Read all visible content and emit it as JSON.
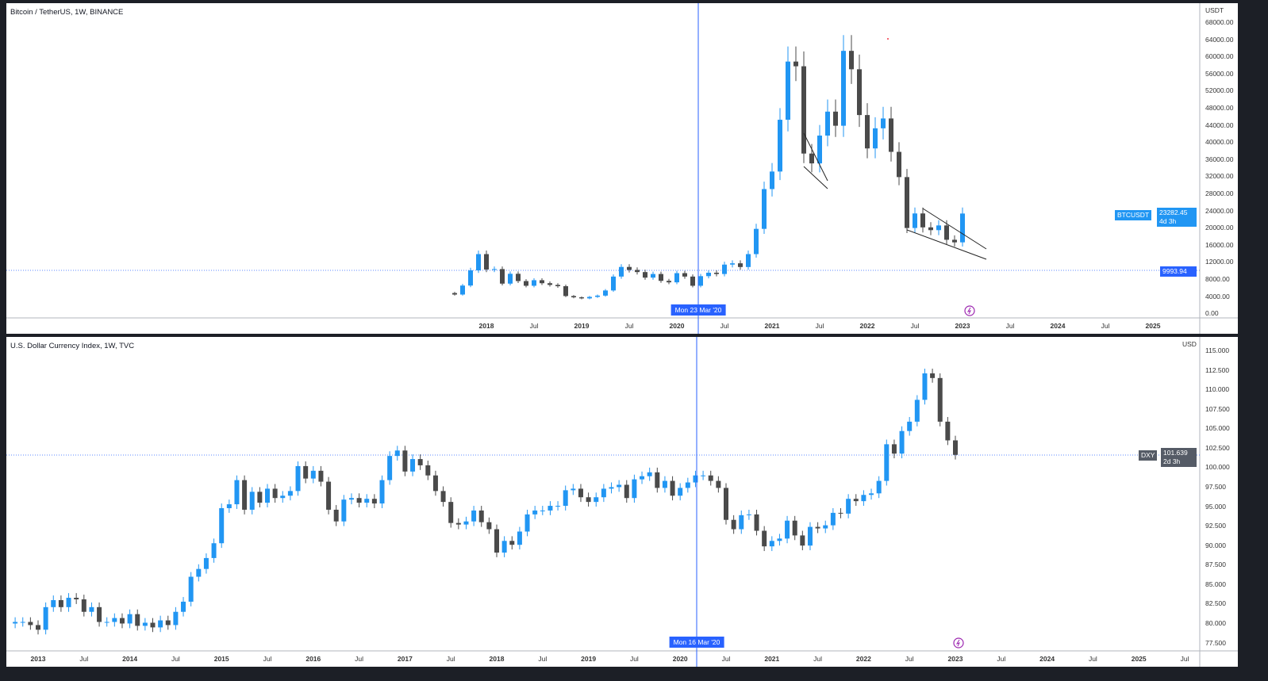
{
  "chart_data": [
    {
      "type": "candlestick",
      "title": "Bitcoin / TetherUS, 1W, BINANCE",
      "currency": "USDT",
      "symbol": "BTCUSDT",
      "last_price": "23282.45",
      "countdown": "4d 3h",
      "crosshair_price": "9993.94",
      "crosshair_date": "Mon 23 Mar '20",
      "ylim": [
        0,
        68000
      ],
      "y_ticks": [
        "68000.00",
        "64000.00",
        "60000.00",
        "56000.00",
        "52000.00",
        "48000.00",
        "44000.00",
        "40000.00",
        "36000.00",
        "32000.00",
        "28000.00",
        "24000.00",
        "20000.00",
        "16000.00",
        "12000.00",
        "8000.00",
        "4000.00",
        "0.00"
      ],
      "x_ticks": [
        [
          "2018",
          "2018-01"
        ],
        [
          "Jul",
          "2018-07"
        ],
        [
          "2019",
          "2019-01"
        ],
        [
          "Jul",
          "2019-07"
        ],
        [
          "2020",
          "2020-01"
        ],
        [
          "Jul",
          "2020-07"
        ],
        [
          "2021",
          "2021-01"
        ],
        [
          "Jul",
          "2021-07"
        ],
        [
          "2022",
          "2022-01"
        ],
        [
          "Jul",
          "2022-07"
        ],
        [
          "2023",
          "2023-01"
        ],
        [
          "Jul",
          "2023-07"
        ],
        [
          "2024",
          "2024-01"
        ],
        [
          "Jul",
          "2024-07"
        ],
        [
          "2025",
          "2025-01"
        ]
      ],
      "up_color": "#2196f3",
      "down_color": "#4a4a4a",
      "closes": [
        [
          "2017-08",
          4700
        ],
        [
          "2017-09",
          4350
        ],
        [
          "2017-10",
          6450
        ],
        [
          "2017-11",
          10000
        ],
        [
          "2017-12",
          13800
        ],
        [
          "2018-01",
          10200
        ],
        [
          "2018-02",
          10300
        ],
        [
          "2018-03",
          6900
        ],
        [
          "2018-04",
          9200
        ],
        [
          "2018-05",
          7500
        ],
        [
          "2018-06",
          6400
        ],
        [
          "2018-07",
          7700
        ],
        [
          "2018-08",
          7000
        ],
        [
          "2018-09",
          6600
        ],
        [
          "2018-10",
          6300
        ],
        [
          "2018-11",
          4000
        ],
        [
          "2018-12",
          3700
        ],
        [
          "2019-01",
          3450
        ],
        [
          "2019-02",
          3800
        ],
        [
          "2019-03",
          4100
        ],
        [
          "2019-04",
          5300
        ],
        [
          "2019-05",
          8550
        ],
        [
          "2019-06",
          10800
        ],
        [
          "2019-07",
          10100
        ],
        [
          "2019-08",
          9600
        ],
        [
          "2019-09",
          8300
        ],
        [
          "2019-10",
          9150
        ],
        [
          "2019-11",
          7550
        ],
        [
          "2019-12",
          7200
        ],
        [
          "2020-01",
          9350
        ],
        [
          "2020-02",
          8550
        ],
        [
          "2020-03",
          6400
        ],
        [
          "2020-04",
          8650
        ],
        [
          "2020-05",
          9450
        ],
        [
          "2020-06",
          9150
        ],
        [
          "2020-07",
          11350
        ],
        [
          "2020-08",
          11650
        ],
        [
          "2020-09",
          10780
        ],
        [
          "2020-10",
          13800
        ],
        [
          "2020-11",
          19700
        ],
        [
          "2020-12",
          29000
        ],
        [
          "2021-01",
          33100
        ],
        [
          "2021-02",
          45200
        ],
        [
          "2021-03",
          58800
        ],
        [
          "2021-04",
          57700
        ],
        [
          "2021-05",
          37300
        ],
        [
          "2021-06",
          35000
        ],
        [
          "2021-07",
          41500
        ],
        [
          "2021-08",
          47100
        ],
        [
          "2021-09",
          43800
        ],
        [
          "2021-10",
          61300
        ],
        [
          "2021-11",
          57000
        ],
        [
          "2021-12",
          46300
        ],
        [
          "2022-01",
          38500
        ],
        [
          "2022-02",
          43200
        ],
        [
          "2022-03",
          45500
        ],
        [
          "2022-04",
          37700
        ],
        [
          "2022-05",
          31800
        ],
        [
          "2022-06",
          19900
        ],
        [
          "2022-07",
          23300
        ],
        [
          "2022-08",
          20050
        ],
        [
          "2022-09",
          19400
        ],
        [
          "2022-10",
          20500
        ],
        [
          "2022-11",
          17150
        ],
        [
          "2022-12",
          16550
        ],
        [
          "2023-01",
          23282.45
        ]
      ],
      "trendlines": [
        [
          [
            "2022-08",
            24460
          ],
          [
            "2023-04",
            15010
          ]
        ],
        [
          [
            "2022-06",
            19455
          ],
          [
            "2023-04",
            12600
          ]
        ],
        [
          [
            "2021-05",
            42060
          ],
          [
            "2021-08",
            30940
          ]
        ],
        [
          [
            "2021-05",
            34280
          ],
          [
            "2021-08",
            29090
          ]
        ]
      ]
    },
    {
      "type": "candlestick",
      "title": "U.S. Dollar Currency Index, 1W, TVC",
      "currency": "USD",
      "symbol": "DXY",
      "last_price": "101.639",
      "countdown": "2d 3h",
      "crosshair_date": "Mon 16 Mar '20",
      "ylim": [
        77.5,
        115
      ],
      "y_ticks": [
        "115.000",
        "112.500",
        "110.000",
        "107.500",
        "105.000",
        "102.500",
        "100.000",
        "97.500",
        "95.000",
        "92.500",
        "90.000",
        "87.500",
        "85.000",
        "82.500",
        "80.000",
        "77.500"
      ],
      "x_ticks": [
        [
          "2013",
          "2013-01"
        ],
        [
          "Jul",
          "2013-07"
        ],
        [
          "2014",
          "2014-01"
        ],
        [
          "Jul",
          "2014-07"
        ],
        [
          "2015",
          "2015-01"
        ],
        [
          "Jul",
          "2015-07"
        ],
        [
          "2016",
          "2016-01"
        ],
        [
          "Jul",
          "2016-07"
        ],
        [
          "2017",
          "2017-01"
        ],
        [
          "Jul",
          "2017-07"
        ],
        [
          "2018",
          "2018-01"
        ],
        [
          "Jul",
          "2018-07"
        ],
        [
          "2019",
          "2019-01"
        ],
        [
          "Jul",
          "2019-07"
        ],
        [
          "2020",
          "2020-01"
        ],
        [
          "Jul",
          "2020-07"
        ],
        [
          "2021",
          "2021-01"
        ],
        [
          "Jul",
          "2021-07"
        ],
        [
          "2022",
          "2022-01"
        ],
        [
          "Jul",
          "2022-07"
        ],
        [
          "2023",
          "2023-01"
        ],
        [
          "Jul",
          "2023-07"
        ],
        [
          "2024",
          "2024-01"
        ],
        [
          "Jul",
          "2024-07"
        ],
        [
          "2025",
          "2025-01"
        ],
        [
          "Jul",
          "2025-07"
        ]
      ],
      "up_color": "#2196f3",
      "down_color": "#4a4a4a",
      "closes": [
        [
          "2012-09",
          80
        ],
        [
          "2012-10",
          80.2
        ],
        [
          "2012-11",
          80.2
        ],
        [
          "2012-12",
          79.8
        ],
        [
          "2013-01",
          79.2
        ],
        [
          "2013-02",
          82.1
        ],
        [
          "2013-03",
          83
        ],
        [
          "2013-04",
          82.1
        ],
        [
          "2013-05",
          83.3
        ],
        [
          "2013-06",
          83.1
        ],
        [
          "2013-07",
          81.5
        ],
        [
          "2013-08",
          82.1
        ],
        [
          "2013-09",
          80.2
        ],
        [
          "2013-10",
          80.2
        ],
        [
          "2013-11",
          80.7
        ],
        [
          "2013-12",
          80
        ],
        [
          "2014-01",
          81.2
        ],
        [
          "2014-02",
          79.7
        ],
        [
          "2014-03",
          80.1
        ],
        [
          "2014-04",
          79.5
        ],
        [
          "2014-05",
          80.4
        ],
        [
          "2014-06",
          79.8
        ],
        [
          "2014-07",
          81.5
        ],
        [
          "2014-08",
          82.8
        ],
        [
          "2014-09",
          86
        ],
        [
          "2014-10",
          87
        ],
        [
          "2014-11",
          88.4
        ],
        [
          "2014-12",
          90.3
        ],
        [
          "2015-01",
          94.8
        ],
        [
          "2015-02",
          95.3
        ],
        [
          "2015-03",
          98.4
        ],
        [
          "2015-04",
          94.6
        ],
        [
          "2015-05",
          96.9
        ],
        [
          "2015-06",
          95.5
        ],
        [
          "2015-07",
          97.3
        ],
        [
          "2015-08",
          96.1
        ],
        [
          "2015-09",
          96.4
        ],
        [
          "2015-10",
          97
        ],
        [
          "2015-11",
          100.2
        ],
        [
          "2015-12",
          98.6
        ],
        [
          "2016-01",
          99.6
        ],
        [
          "2016-02",
          98.2
        ],
        [
          "2016-03",
          94.6
        ],
        [
          "2016-04",
          93.1
        ],
        [
          "2016-05",
          95.9
        ],
        [
          "2016-06",
          96.1
        ],
        [
          "2016-07",
          95.5
        ],
        [
          "2016-08",
          96
        ],
        [
          "2016-09",
          95.4
        ],
        [
          "2016-10",
          98.4
        ],
        [
          "2016-11",
          101.5
        ],
        [
          "2016-12",
          102.2
        ],
        [
          "2017-01",
          99.5
        ],
        [
          "2017-02",
          101.1
        ],
        [
          "2017-03",
          100.3
        ],
        [
          "2017-04",
          99
        ],
        [
          "2017-05",
          97
        ],
        [
          "2017-06",
          95.6
        ],
        [
          "2017-07",
          92.9
        ],
        [
          "2017-08",
          92.7
        ],
        [
          "2017-09",
          93.1
        ],
        [
          "2017-10",
          94.5
        ],
        [
          "2017-11",
          93
        ],
        [
          "2017-12",
          92.1
        ],
        [
          "2018-01",
          89.1
        ],
        [
          "2018-02",
          90.6
        ],
        [
          "2018-03",
          90.1
        ],
        [
          "2018-04",
          91.8
        ],
        [
          "2018-05",
          94
        ],
        [
          "2018-06",
          94.5
        ],
        [
          "2018-07",
          94.5
        ],
        [
          "2018-08",
          95.1
        ],
        [
          "2018-09",
          95.1
        ],
        [
          "2018-10",
          97.1
        ],
        [
          "2018-11",
          97.3
        ],
        [
          "2018-12",
          96.2
        ],
        [
          "2019-01",
          95.6
        ],
        [
          "2019-02",
          96.2
        ],
        [
          "2019-03",
          97.3
        ],
        [
          "2019-04",
          97.5
        ],
        [
          "2019-05",
          97.8
        ],
        [
          "2019-06",
          96.1
        ],
        [
          "2019-07",
          98.5
        ],
        [
          "2019-08",
          98.9
        ],
        [
          "2019-09",
          99.4
        ],
        [
          "2019-10",
          97.4
        ],
        [
          "2019-11",
          98.3
        ],
        [
          "2019-12",
          96.4
        ],
        [
          "2020-01",
          97.4
        ],
        [
          "2020-02",
          98.1
        ],
        [
          "2020-03",
          99
        ],
        [
          "2020-04",
          99
        ],
        [
          "2020-05",
          98.3
        ],
        [
          "2020-06",
          97.4
        ],
        [
          "2020-07",
          93.3
        ],
        [
          "2020-08",
          92.1
        ],
        [
          "2020-09",
          93.9
        ],
        [
          "2020-10",
          94
        ],
        [
          "2020-11",
          91.9
        ],
        [
          "2020-12",
          89.9
        ],
        [
          "2021-01",
          90.6
        ],
        [
          "2021-02",
          90.9
        ],
        [
          "2021-03",
          93.2
        ],
        [
          "2021-04",
          91.3
        ],
        [
          "2021-05",
          90
        ],
        [
          "2021-06",
          92.4
        ],
        [
          "2021-07",
          92.2
        ],
        [
          "2021-08",
          92.6
        ],
        [
          "2021-09",
          94.2
        ],
        [
          "2021-10",
          94.1
        ],
        [
          "2021-11",
          96
        ],
        [
          "2021-12",
          95.7
        ],
        [
          "2022-01",
          96.5
        ],
        [
          "2022-02",
          96.7
        ],
        [
          "2022-03",
          98.3
        ],
        [
          "2022-04",
          103
        ],
        [
          "2022-05",
          101.8
        ],
        [
          "2022-06",
          104.7
        ],
        [
          "2022-07",
          105.9
        ],
        [
          "2022-08",
          108.7
        ],
        [
          "2022-09",
          112.1
        ],
        [
          "2022-10",
          111.5
        ],
        [
          "2022-11",
          105.9
        ],
        [
          "2022-12",
          103.5
        ],
        [
          "2023-01",
          101.639
        ]
      ]
    }
  ]
}
